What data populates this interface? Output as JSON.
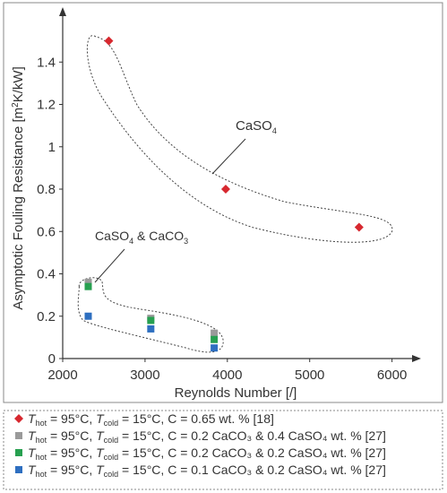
{
  "chart_data": {
    "type": "scatter",
    "xlabel": "Reynolds Number [/]",
    "ylabel_prefix": "Asymptotic Fouling Resistance  [m",
    "ylabel_sup": "2",
    "ylabel_suffix": "K/kW]",
    "xlim": [
      2000,
      6200
    ],
    "ylim": [
      0,
      1.6
    ],
    "xticks": [
      "2000",
      "3000",
      "4000",
      "5000",
      "6000"
    ],
    "xtick_values": [
      2000,
      3000,
      4000,
      5000,
      6000
    ],
    "yticks": [
      "0",
      "0.2",
      "0.4",
      "0.6",
      "0.8",
      "1",
      "1.2",
      "1.4"
    ],
    "ytick_values": [
      0,
      0.2,
      0.4,
      0.6,
      0.8,
      1.0,
      1.2,
      1.4
    ],
    "series": [
      {
        "marker": "diamond",
        "color": "#d7282f",
        "points": [
          [
            2560,
            1.5
          ],
          [
            3980,
            0.8
          ],
          [
            5600,
            0.62
          ]
        ]
      },
      {
        "marker": "square",
        "color": "#9a9a9a",
        "points": [
          [
            2310,
            0.36
          ],
          [
            3070,
            0.19
          ],
          [
            3840,
            0.12
          ]
        ]
      },
      {
        "marker": "square",
        "color": "#27a050",
        "points": [
          [
            2310,
            0.34
          ],
          [
            3070,
            0.18
          ],
          [
            3840,
            0.09
          ]
        ]
      },
      {
        "marker": "square",
        "color": "#2e6fc0",
        "points": [
          [
            2310,
            0.2
          ],
          [
            3070,
            0.14
          ],
          [
            3840,
            0.05
          ]
        ]
      }
    ],
    "annotations": [
      {
        "main": "CaSO",
        "sub": "4",
        "rest": ""
      },
      {
        "main": "CaSO",
        "sub": "4",
        "rest": " & CaCO",
        "sub2": "3"
      }
    ],
    "legend": {
      "placement": "bottom",
      "entries": [
        {
          "tail": ", C = 0.65 wt. % [18]"
        },
        {
          "tail": ", C = 0.2 CaCO₃ & 0.4 CaSO₄ wt. % [27]"
        },
        {
          "tail": ", C = 0.2 CaCO₃ & 0.2 CaSO₄ wt. % [27]"
        },
        {
          "tail": ", C = 0.1 CaCO₃ & 0.2 CaSO₄ wt. % [27]"
        }
      ],
      "thot": "T",
      "thot_sub": "hot",
      "thot_val": " = 95°C, ",
      "tcold": "T",
      "tcold_sub": "cold",
      "tcold_val": " = 15°C"
    }
  }
}
